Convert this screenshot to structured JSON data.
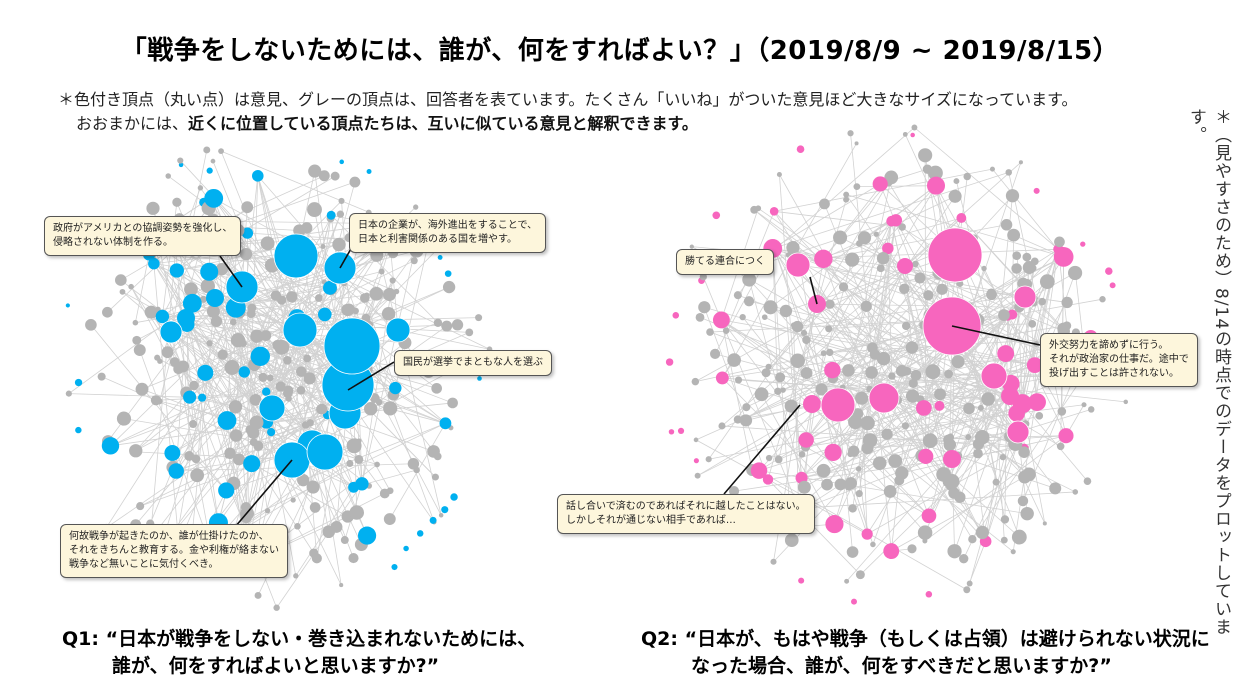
{
  "title": "「戦争をしないためには、誰が、何をすればよい？」（2019/8/9 ~ 2019/8/15）",
  "note": {
    "line1": "＊色付き頂点（丸い点）は意見、グレーの頂点は、回答者を表ています。たくさん「いいね」がついた意見ほど大きなサイズになっています。",
    "line2_prefix": "おおまかには、",
    "line2_bold": "近くに位置している頂点たちは、互いに似ている意見と解釈できます。"
  },
  "side_note": "＊（見やすさのため）8/14の時点でのデータをプロットしています。",
  "colors": {
    "q1_opinion": "#00b0f0",
    "q2_opinion": "#f766be",
    "respondent": "#b4b4b4",
    "edge": "#d2d2d2",
    "callout_bg": "#fdf6dc"
  },
  "q1": {
    "question_line1": "Q1: “日本が戦争をしない・巻き込まれないためには、",
    "question_line2": "誰が、何をすればよいと思いますか?”",
    "callouts": [
      {
        "text": "政府がアメリカとの協調姿勢を強化し、\n侵略されない体制を作る。"
      },
      {
        "text": "日本の企業が、海外進出をすることで、\n日本と利害関係のある国を増やす。"
      },
      {
        "text": "国民が選挙でまともな人を選ぶ"
      },
      {
        "text": "何故戦争が起きたのか、誰が仕掛けたのか、\nそれをきちんと教育する。金や利権が絡まない\n戦争など無いことに気付くべき。"
      }
    ]
  },
  "q2": {
    "question_line1": "Q2: “日本が、もはや戦争（もしくは占領）は避けられない状況に",
    "question_line2": "なった場合、誰が、何をすべきだと思いますか?”",
    "callouts": [
      {
        "text": "勝てる連合につく"
      },
      {
        "text": "外交努力を諦めずに行う。\nそれが政治家の仕事だ。途中で\n投げ出すことは許されない。"
      },
      {
        "text": "話し合いで済むのであればそれに越したことはない。\nしかしそれが通じない相手であれば…"
      }
    ]
  }
}
